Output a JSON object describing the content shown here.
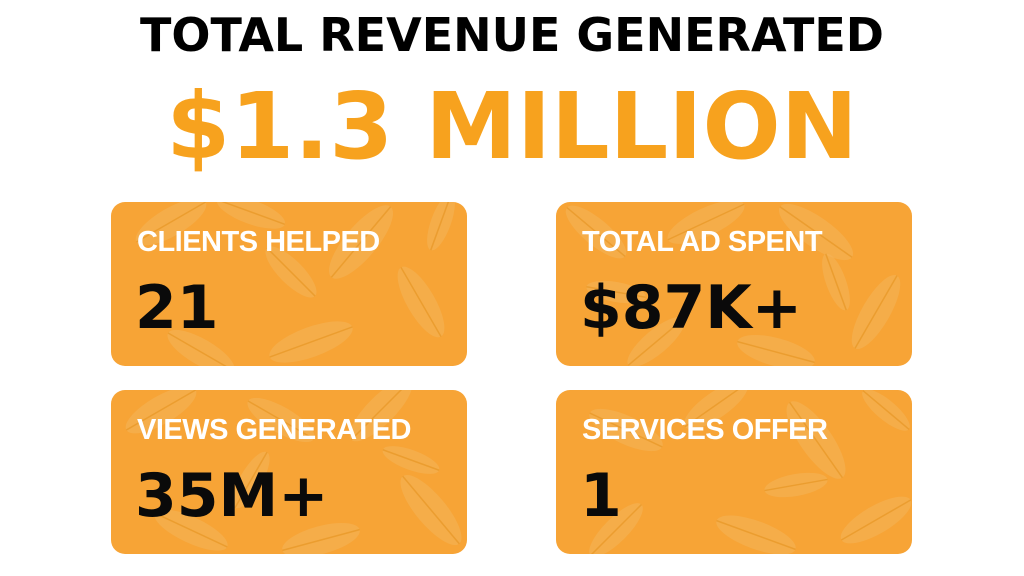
{
  "headline": "TOTAL REVENUE GENERATED",
  "total_revenue": "$1.3 MILLION",
  "colors": {
    "accent": "#F7A21E",
    "card": "#F7A436",
    "text_dark": "#0a0a0a",
    "text_light": "#ffffff"
  },
  "stats": [
    {
      "label": "CLIENTS HELPED",
      "value": "21"
    },
    {
      "label": "TOTAL AD SPENT",
      "value": "$87K+"
    },
    {
      "label": "VIEWS GENERATED",
      "value": "35M+"
    },
    {
      "label": "SERVICES OFFER",
      "value": "1"
    }
  ]
}
